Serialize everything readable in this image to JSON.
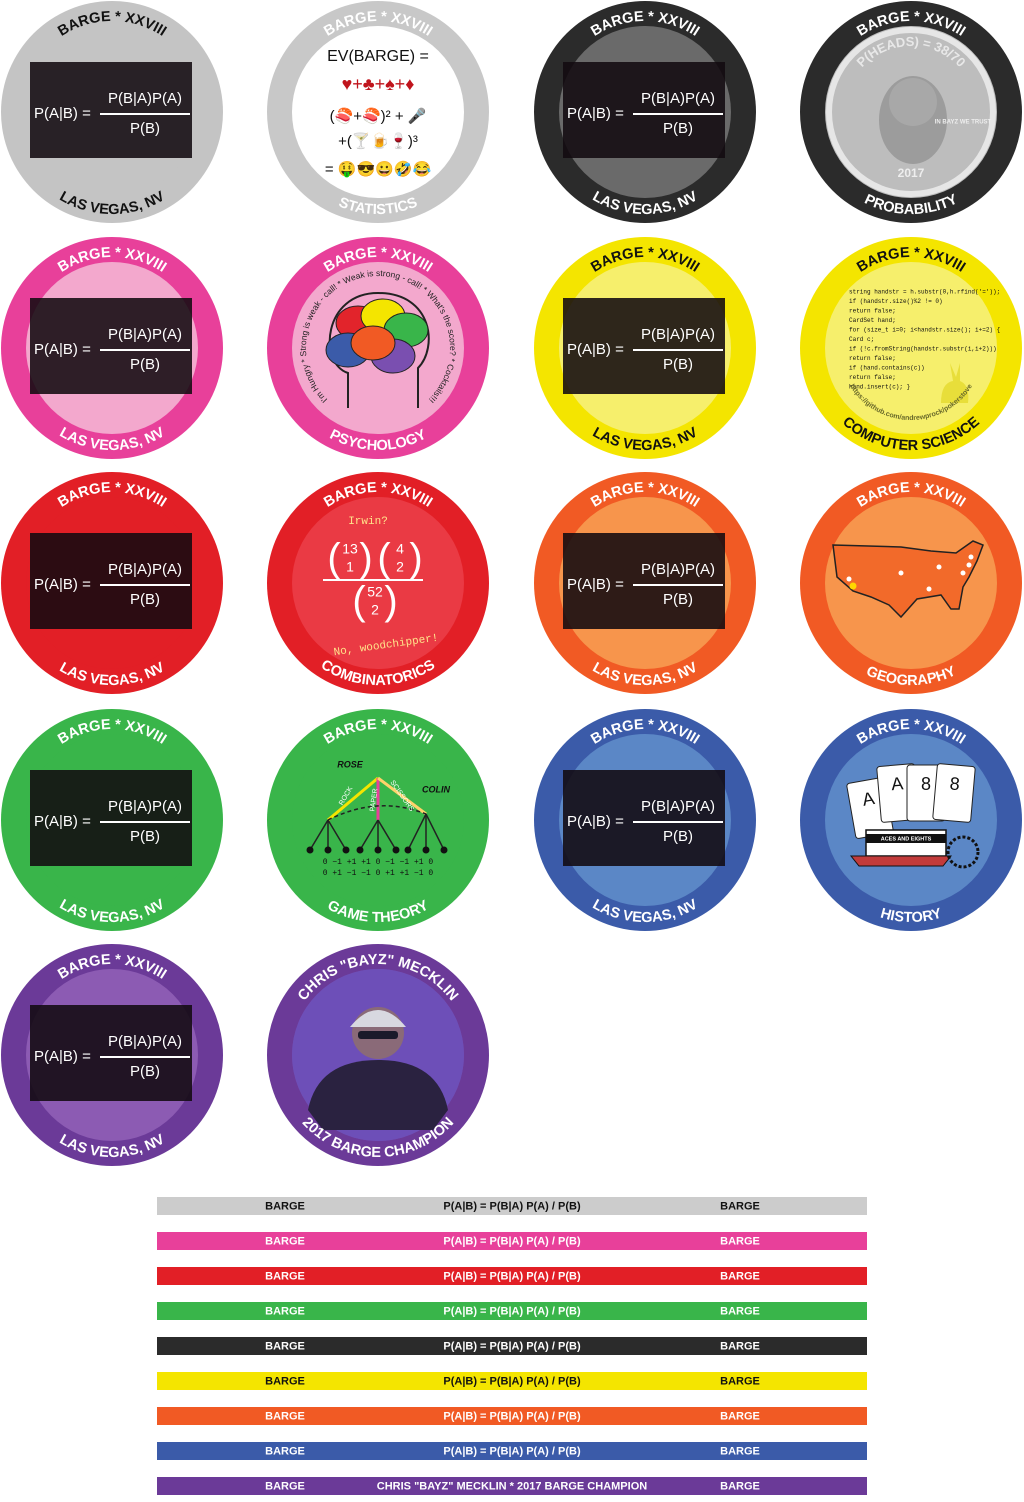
{
  "chips": [
    {
      "kind": "formula",
      "top": "BARGE * XXVIII",
      "bottom": "LAS VEGAS, NV",
      "ring": "#c4c4c4",
      "face": "#c4c4c4",
      "text_color": "#111",
      "formula": {
        "lhs": "P(A|B) =",
        "num": "P(B|A)P(A)",
        "den": "P(B)"
      }
    },
    {
      "kind": "statistics",
      "top": "BARGE * XXVIII",
      "bottom": "STATISTICS",
      "ring": "#c8c8c8",
      "face": "#ffffff",
      "text_color": "#ffffff",
      "lines": [
        "EV(BARGE) =",
        "♥+♣+♠+♦",
        "(🍣+🍣)²  +  🎤",
        "+(🍸🍺🍷)³",
        "= 🤑😎😀🤣😂"
      ]
    },
    {
      "kind": "formula",
      "top": "BARGE * XXVIII",
      "bottom": "LAS VEGAS, NV",
      "ring": "#2b2b2b",
      "face": "#6a6a6a",
      "text_color": "#ffffff",
      "formula": {
        "lhs": "P(A|B) =",
        "num": "P(B|A)P(A)",
        "den": "P(B)"
      }
    },
    {
      "kind": "coin",
      "top": "BARGE * XXVIII",
      "bottom": "PROBABILITY",
      "ring": "#2b2b2b",
      "face": "#bdbdbd",
      "text_color": "#ffffff",
      "coin": {
        "legend": "P(HEADS) = 38/70",
        "motto": "IN BAYZ WE TRUST",
        "year": "2017"
      }
    },
    {
      "kind": "formula",
      "top": "BARGE * XXVIII",
      "bottom": "LAS VEGAS, NV",
      "ring": "#e8409a",
      "face": "#f3a8cd",
      "text_color": "#ffffff",
      "formula": {
        "lhs": "P(A|B) =",
        "num": "P(B|A)P(A)",
        "den": "P(B)"
      }
    },
    {
      "kind": "psychology",
      "top": "BARGE * XXVIII",
      "bottom": "PSYCHOLOGY",
      "ring": "#e8409a",
      "face": "#f3a8cd",
      "text_color": "#ffffff",
      "ring_text": "I'm Hungry * Strong is weak - call! * Weak is strong - call! * What's the score? * Cocktails!!!"
    },
    {
      "kind": "formula",
      "top": "BARGE * XXVIII",
      "bottom": "LAS VEGAS, NV",
      "ring": "#f4e500",
      "face": "#f6ef6c",
      "text_color": "#111",
      "formula": {
        "lhs": "P(A|B) =",
        "num": "P(B|A)P(A)",
        "den": "P(B)"
      }
    },
    {
      "kind": "code",
      "top": "BARGE * XXVIII",
      "bottom": "COMPUTER SCIENCE",
      "ring": "#f4e500",
      "face": "#f6ef6c",
      "text_color": "#111",
      "code": [
        "string handstr = h.substr(0,h.rfind('='));",
        "if (handstr.size()%2 != 0)",
        "   return false;",
        "CardSet hand;",
        "for (size_t i=0; i<handstr.size(); i+=2) {",
        "   Card c;",
        "   if (!c.fromString(handstr.substr(i,i+2)))",
        "      return false;",
        "   if (hand.contains(c))",
        "      return false;",
        "   hand.insert(c); }"
      ],
      "url": "https://github.com/andrewprock/pokerstove"
    },
    {
      "kind": "formula",
      "top": "BARGE * XXVIII",
      "bottom": "LAS VEGAS, NV",
      "ring": "#e21f26",
      "face": "#e21f26",
      "text_color": "#ffffff",
      "formula": {
        "lhs": "P(A|B) =",
        "num": "P(B|A)P(A)",
        "den": "P(B)"
      }
    },
    {
      "kind": "combinatorics",
      "top": "BARGE * XXVIII",
      "bottom": "COMBINATORICS",
      "ring": "#e21f26",
      "face": "#ea3a44",
      "text_color": "#ffffff",
      "question": "Irwin?",
      "binomials": [
        [
          "13",
          "1"
        ],
        [
          "4",
          "2"
        ],
        [
          "52",
          "2"
        ]
      ],
      "answer": "No, woodchipper!"
    },
    {
      "kind": "formula",
      "top": "BARGE * XXVIII",
      "bottom": "LAS VEGAS, NV",
      "ring": "#f15a24",
      "face": "#f7954c",
      "text_color": "#ffffff",
      "formula": {
        "lhs": "P(A|B) =",
        "num": "P(B|A)P(A)",
        "den": "P(B)"
      }
    },
    {
      "kind": "geography",
      "top": "BARGE * XXVIII",
      "bottom": "GEOGRAPHY",
      "ring": "#f15a24",
      "face": "#f7954c",
      "text_color": "#ffffff"
    },
    {
      "kind": "formula",
      "top": "BARGE * XXVIII",
      "bottom": "LAS VEGAS, NV",
      "ring": "#39b54a",
      "face": "#39b54a",
      "text_color": "#ffffff",
      "formula": {
        "lhs": "P(A|B) =",
        "num": "P(B|A)P(A)",
        "den": "P(B)"
      }
    },
    {
      "kind": "gametheory",
      "top": "BARGE * XXVIII",
      "bottom": "GAME THEORY",
      "ring": "#39b54a",
      "face": "#39b54a",
      "text_color": "#ffffff",
      "players": [
        "ROSE",
        "COLIN"
      ],
      "moves": [
        "ROCK",
        "PAPER",
        "SCISSORS"
      ],
      "payoffs": [
        "0 −1 +1  +1  0 −1  −1 +1  0",
        "0 +1 −1  −1  0 +1  +1 −1  0"
      ]
    },
    {
      "kind": "formula",
      "top": "BARGE * XXVIII",
      "bottom": "LAS VEGAS, NV",
      "ring": "#3b5ba9",
      "face": "#5b87c6",
      "text_color": "#ffffff",
      "formula": {
        "lhs": "P(A|B) =",
        "num": "P(B|A)P(A)",
        "den": "P(B)"
      }
    },
    {
      "kind": "history",
      "top": "BARGE * XXVIII",
      "bottom": "HISTORY",
      "ring": "#3b5ba9",
      "face": "#5b87c6",
      "text_color": "#ffffff",
      "cards": [
        "A",
        "A",
        "8",
        "8"
      ],
      "boat": "ACES AND EIGHTS"
    },
    {
      "kind": "formula",
      "top": "BARGE * XXVIII",
      "bottom": "LAS VEGAS, NV",
      "ring": "#6b3a98",
      "face": "#8c5bb3",
      "text_color": "#ffffff",
      "formula": {
        "lhs": "P(A|B) =",
        "num": "P(B|A)P(A)",
        "den": "P(B)"
      }
    },
    {
      "kind": "champion",
      "top": "CHRIS \"BAYZ\" MECKLIN",
      "bottom": "2017 BARGE CHAMPION",
      "ring": "#6b3a98",
      "face": "#7a4fb0",
      "text_color": "#ffffff"
    }
  ],
  "stripes": [
    {
      "color": "#cccccc",
      "text_color": "#111",
      "left": "BARGE",
      "center": "P(A|B) = P(B|A) P(A) / P(B)",
      "right": "BARGE"
    },
    {
      "color": "#e8409a",
      "text_color": "#ffffff",
      "left": "BARGE",
      "center": "P(A|B) = P(B|A) P(A) / P(B)",
      "right": "BARGE"
    },
    {
      "color": "#e21f26",
      "text_color": "#ffffff",
      "left": "BARGE",
      "center": "P(A|B) = P(B|A) P(A) / P(B)",
      "right": "BARGE"
    },
    {
      "color": "#39b54a",
      "text_color": "#ffffff",
      "left": "BARGE",
      "center": "P(A|B) = P(B|A) P(A) / P(B)",
      "right": "BARGE"
    },
    {
      "color": "#2b2b2b",
      "text_color": "#ffffff",
      "left": "BARGE",
      "center": "P(A|B) = P(B|A) P(A) / P(B)",
      "right": "BARGE"
    },
    {
      "color": "#f4e500",
      "text_color": "#111",
      "left": "BARGE",
      "center": "P(A|B) = P(B|A) P(A) / P(B)",
      "right": "BARGE"
    },
    {
      "color": "#f15a24",
      "text_color": "#ffffff",
      "left": "BARGE",
      "center": "P(A|B) = P(B|A) P(A) / P(B)",
      "right": "BARGE"
    },
    {
      "color": "#3b5ba9",
      "text_color": "#ffffff",
      "left": "BARGE",
      "center": "P(A|B) = P(B|A) P(A) / P(B)",
      "right": "BARGE"
    },
    {
      "color": "#6b3a98",
      "text_color": "#ffffff",
      "left": "BARGE",
      "center": "CHRIS \"BAYZ\" MECKLIN * 2017 BARGE CHAMPION",
      "right": "BARGE"
    }
  ]
}
